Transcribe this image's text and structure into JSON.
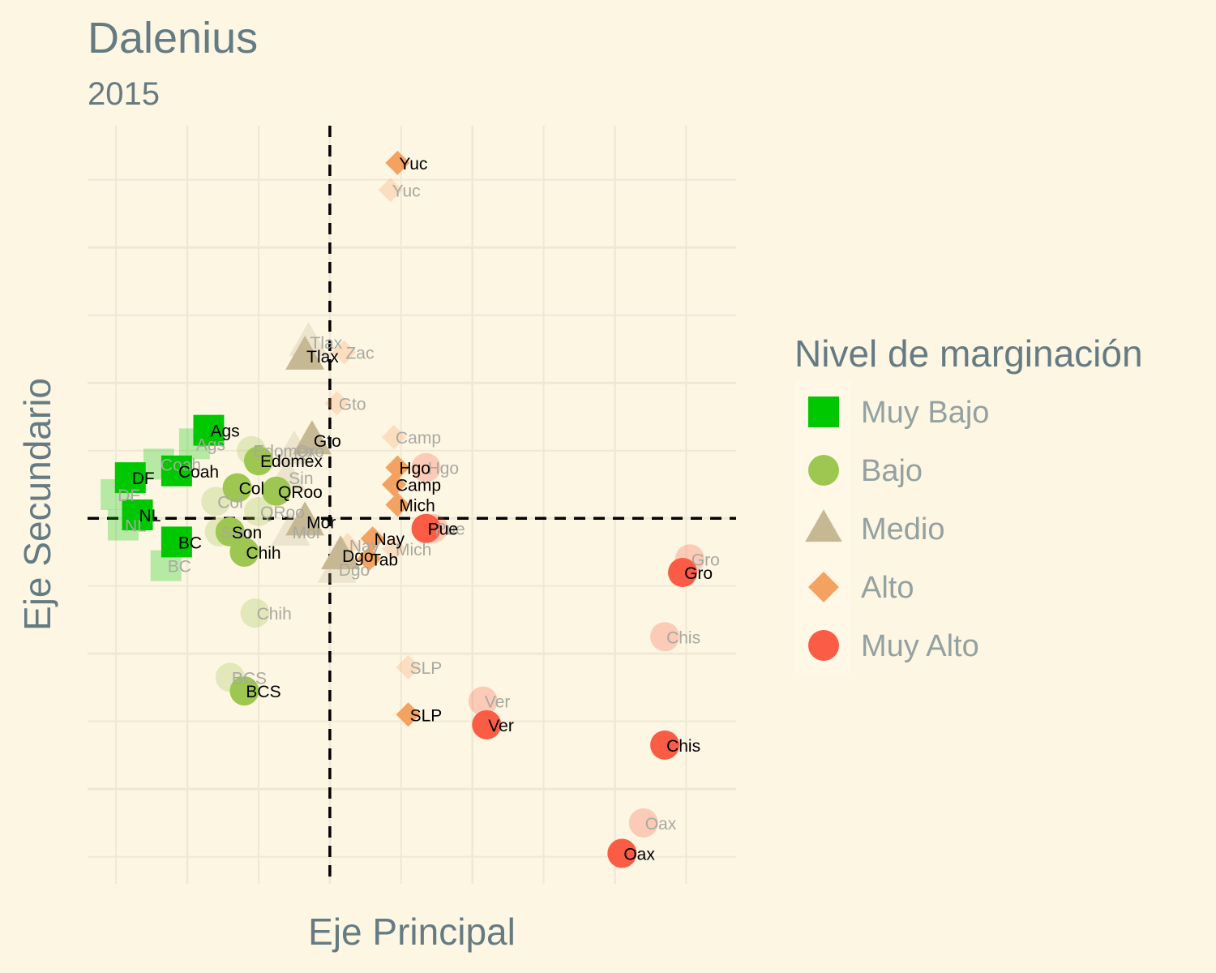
{
  "chart_data": {
    "type": "scatter",
    "title": "Dalenius",
    "subtitle": "2015",
    "xlabel": "Eje Principal",
    "ylabel": "Eje Secundario",
    "xlim": [
      -3.4,
      5.7
    ],
    "ylim": [
      -5.4,
      5.8
    ],
    "grid": true,
    "reference_lines": {
      "x": 0,
      "y": 0
    },
    "legend": {
      "title": "Nivel de marginación",
      "position": "right",
      "entries": [
        {
          "level": "Muy Bajo",
          "label": "Muy Bajo",
          "shape": "square",
          "color": "#00C800"
        },
        {
          "level": "Bajo",
          "label": "Bajo",
          "shape": "circle",
          "color": "#9DC750"
        },
        {
          "level": "Medio",
          "label": "Medio",
          "shape": "triangle",
          "color": "#C7B894"
        },
        {
          "level": "Alto",
          "label": "Alto",
          "shape": "diamond",
          "color": "#F4A261"
        },
        {
          "level": "Muy Alto",
          "label": "Muy Alto",
          "shape": "circle",
          "color": "#FA5C46"
        }
      ]
    },
    "series": [
      {
        "opacity": "faded",
        "points": [
          {
            "label": "Ags",
            "level": "Muy Bajo",
            "x": -1.9,
            "y": 1.1
          },
          {
            "label": "Coah",
            "level": "Muy Bajo",
            "x": -2.4,
            "y": 0.8
          },
          {
            "label": "DF",
            "level": "Muy Bajo",
            "x": -3.0,
            "y": 0.35
          },
          {
            "label": "NL",
            "level": "Muy Bajo",
            "x": -2.9,
            "y": -0.1
          },
          {
            "label": "BC",
            "level": "Muy Bajo",
            "x": -2.3,
            "y": -0.7
          },
          {
            "label": "Col",
            "level": "Bajo",
            "x": -1.6,
            "y": 0.25
          },
          {
            "label": "Edomex",
            "level": "Bajo",
            "x": -1.1,
            "y": 1.0
          },
          {
            "label": "QRoo",
            "level": "Bajo",
            "x": -1.0,
            "y": 0.1
          },
          {
            "label": "Son",
            "level": "Bajo",
            "x": -1.55,
            "y": -0.2
          },
          {
            "label": "Chih",
            "level": "Bajo",
            "x": -1.05,
            "y": -1.4
          },
          {
            "label": "BCS",
            "level": "Bajo",
            "x": -1.4,
            "y": -2.35
          },
          {
            "label": "Tlax",
            "level": "Medio",
            "x": -0.3,
            "y": 2.6
          },
          {
            "label": "Qro",
            "level": "Medio",
            "x": -0.5,
            "y": 1.0
          },
          {
            "label": "Sin",
            "level": "Medio",
            "x": -0.6,
            "y": 0.6
          },
          {
            "label": "Mor",
            "level": "Medio",
            "x": -0.55,
            "y": -0.2
          },
          {
            "label": "Dgo",
            "level": "Medio",
            "x": 0.1,
            "y": -0.75
          },
          {
            "label": "Zac",
            "level": "Alto",
            "x": 0.2,
            "y": 2.45
          },
          {
            "label": "Gto",
            "level": "Alto",
            "x": 0.1,
            "y": 1.7
          },
          {
            "label": "Yuc",
            "level": "Alto",
            "x": 0.85,
            "y": 4.85
          },
          {
            "label": "Camp",
            "level": "Alto",
            "x": 0.9,
            "y": 1.2
          },
          {
            "label": "Nay",
            "level": "Alto",
            "x": 0.25,
            "y": -0.4
          },
          {
            "label": "Mich",
            "level": "Alto",
            "x": 0.9,
            "y": -0.45
          },
          {
            "label": "SLP",
            "level": "Alto",
            "x": 1.1,
            "y": -2.2
          },
          {
            "label": "Hgo",
            "level": "Muy Alto",
            "x": 1.35,
            "y": 0.75
          },
          {
            "label": "Pue",
            "level": "Muy Alto",
            "x": 1.45,
            "y": -0.15
          },
          {
            "label": "Gro",
            "level": "Muy Alto",
            "x": 5.05,
            "y": -0.6
          },
          {
            "label": "Chis",
            "level": "Muy Alto",
            "x": 4.7,
            "y": -1.75
          },
          {
            "label": "Ver",
            "level": "Muy Alto",
            "x": 2.15,
            "y": -2.7
          },
          {
            "label": "Oax",
            "level": "Muy Alto",
            "x": 4.4,
            "y": -4.5
          }
        ]
      },
      {
        "opacity": "full",
        "points": [
          {
            "label": "Ags",
            "level": "Muy Bajo",
            "x": -1.7,
            "y": 1.3
          },
          {
            "label": "Coah",
            "level": "Muy Bajo",
            "x": -2.15,
            "y": 0.7
          },
          {
            "label": "DF",
            "level": "Muy Bajo",
            "x": -2.8,
            "y": 0.6
          },
          {
            "label": "NL",
            "level": "Muy Bajo",
            "x": -2.7,
            "y": 0.05
          },
          {
            "label": "BC",
            "level": "Muy Bajo",
            "x": -2.15,
            "y": -0.35
          },
          {
            "label": "Edomex",
            "level": "Bajo",
            "x": -1.0,
            "y": 0.85
          },
          {
            "label": "Col",
            "level": "Bajo",
            "x": -1.3,
            "y": 0.45
          },
          {
            "label": "QRoo",
            "level": "Bajo",
            "x": -0.75,
            "y": 0.4
          },
          {
            "label": "Son",
            "level": "Bajo",
            "x": -1.4,
            "y": -0.2
          },
          {
            "label": "Chih",
            "level": "Bajo",
            "x": -1.2,
            "y": -0.5
          },
          {
            "label": "BCS",
            "level": "Bajo",
            "x": -1.2,
            "y": -2.55
          },
          {
            "label": "Tlax",
            "level": "Medio",
            "x": -0.35,
            "y": 2.4
          },
          {
            "label": "Gto",
            "level": "Medio",
            "x": -0.25,
            "y": 1.15
          },
          {
            "label": "Mor",
            "level": "Medio",
            "x": -0.35,
            "y": -0.05
          },
          {
            "label": "Dgo",
            "level": "Medio",
            "x": 0.15,
            "y": -0.55
          },
          {
            "label": "Yuc",
            "level": "Alto",
            "x": 0.95,
            "y": 5.25
          },
          {
            "label": "Hgo",
            "level": "Alto",
            "x": 0.95,
            "y": 0.75
          },
          {
            "label": "Camp",
            "level": "Alto",
            "x": 0.9,
            "y": 0.5
          },
          {
            "label": "Mich",
            "level": "Alto",
            "x": 0.95,
            "y": 0.2
          },
          {
            "label": "Nay",
            "level": "Alto",
            "x": 0.6,
            "y": -0.3
          },
          {
            "label": "Tab",
            "level": "Alto",
            "x": 0.55,
            "y": -0.6
          },
          {
            "label": "SLP",
            "level": "Alto",
            "x": 1.1,
            "y": -2.9
          },
          {
            "label": "Pue",
            "level": "Muy Alto",
            "x": 1.35,
            "y": -0.15
          },
          {
            "label": "Gro",
            "level": "Muy Alto",
            "x": 4.95,
            "y": -0.8
          },
          {
            "label": "Chis",
            "level": "Muy Alto",
            "x": 4.7,
            "y": -3.35
          },
          {
            "label": "Ver",
            "level": "Muy Alto",
            "x": 2.2,
            "y": -3.05
          },
          {
            "label": "Oax",
            "level": "Muy Alto",
            "x": 4.1,
            "y": -4.95
          }
        ]
      }
    ]
  }
}
